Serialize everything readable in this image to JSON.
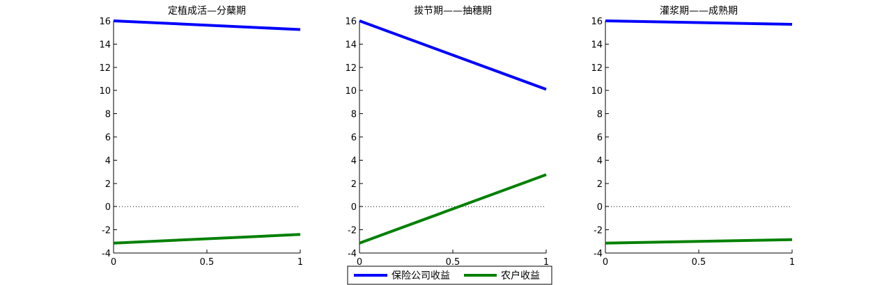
{
  "chart_data": [
    {
      "type": "line",
      "title": "定植成活—分蘖期",
      "xlim": [
        0,
        1
      ],
      "ylim": [
        -4,
        16
      ],
      "xticks": [
        "0",
        "0.5",
        "1"
      ],
      "yticks": [
        "-4",
        "-2",
        "0",
        "2",
        "4",
        "6",
        "8",
        "10",
        "12",
        "14",
        "16"
      ],
      "reference_line": {
        "y": 0,
        "style": "dotted"
      },
      "series": [
        {
          "name": "保险公司收益",
          "color": "#0000ff",
          "x": [
            0,
            1
          ],
          "y": [
            16.0,
            15.25
          ]
        },
        {
          "name": "农户收益",
          "color": "#008000",
          "x": [
            0,
            1
          ],
          "y": [
            -3.15,
            -2.4
          ]
        }
      ]
    },
    {
      "type": "line",
      "title": "拔节期——抽穗期",
      "xlim": [
        0,
        1
      ],
      "ylim": [
        -4,
        16
      ],
      "xticks": [
        "0",
        "0.5",
        "1"
      ],
      "yticks": [
        "-4",
        "-2",
        "0",
        "2",
        "4",
        "6",
        "8",
        "10",
        "12",
        "14",
        "16"
      ],
      "reference_line": {
        "y": 0,
        "style": "dotted"
      },
      "series": [
        {
          "name": "保险公司收益",
          "color": "#0000ff",
          "x": [
            0,
            1
          ],
          "y": [
            16.0,
            10.1
          ]
        },
        {
          "name": "农户收益",
          "color": "#008000",
          "x": [
            0,
            1
          ],
          "y": [
            -3.15,
            2.75
          ]
        }
      ]
    },
    {
      "type": "line",
      "title": "灌浆期——成熟期",
      "xlim": [
        0,
        1
      ],
      "ylim": [
        -4,
        16
      ],
      "xticks": [
        "0",
        "0.5",
        "1"
      ],
      "yticks": [
        "-4",
        "-2",
        "0",
        "2",
        "4",
        "6",
        "8",
        "10",
        "12",
        "14",
        "16"
      ],
      "reference_line": {
        "y": 0,
        "style": "dotted"
      },
      "series": [
        {
          "name": "保险公司收益",
          "color": "#0000ff",
          "x": [
            0,
            1
          ],
          "y": [
            16.0,
            15.7
          ]
        },
        {
          "name": "农户收益",
          "color": "#008000",
          "x": [
            0,
            1
          ],
          "y": [
            -3.15,
            -2.85
          ]
        }
      ]
    }
  ],
  "legend": {
    "placement": "bottom-center",
    "entries": [
      {
        "label": "保险公司收益",
        "color": "#0000ff"
      },
      {
        "label": "农户收益",
        "color": "#008000"
      }
    ]
  }
}
